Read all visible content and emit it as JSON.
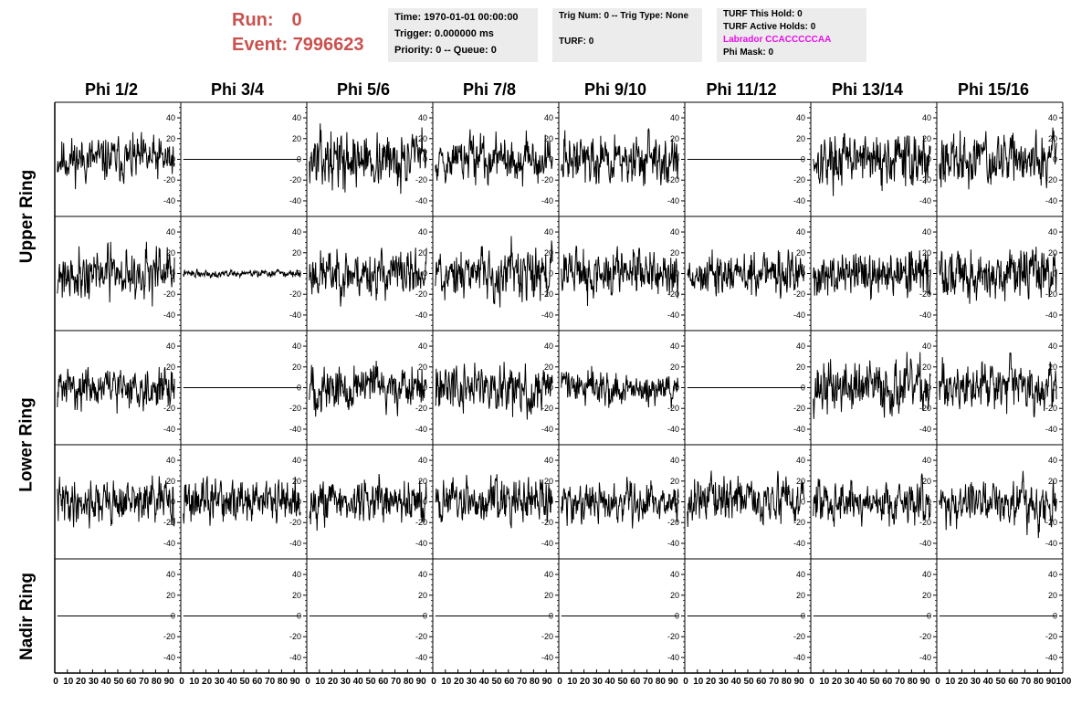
{
  "header": {
    "run_label": "Run:",
    "run_value": "0",
    "event_label": "Event:",
    "event_value": "7996623"
  },
  "info_boxes": {
    "time_box": {
      "time": "Time: 1970-01-01 00:00:00",
      "trigger": "Trigger: 0.000000 ms",
      "priority": "Priority: 0 -- Queue: 0"
    },
    "trig_box": {
      "trig": "Trig Num: 0 -- Trig Type: None",
      "turf": "TURF: 0"
    },
    "turf_box": {
      "this_hold": "TURF This Hold: 0",
      "active_holds": "TURF Active Holds: 0",
      "labrador": "Labrador CCACCCCCAA",
      "phi_mask": "Phi Mask: 0"
    }
  },
  "colors": {
    "run_text": "#c9524f",
    "labrador_text": "#e60fe6",
    "info_background": "#ececec",
    "trace": "#000000"
  },
  "columns": [
    "Phi 1/2",
    "Phi 3/4",
    "Phi 5/6",
    "Phi 7/8",
    "Phi 9/10",
    "Phi 11/12",
    "Phi 13/14",
    "Phi 15/16"
  ],
  "rows": [
    "Upper Ring",
    "Lower Ring",
    "Nadir Ring"
  ],
  "chart_data": {
    "type": "line",
    "description_rows": 5,
    "ylim": [
      -55,
      55
    ],
    "xlim": [
      0,
      100
    ],
    "yticks": [
      40,
      20,
      0,
      -20,
      -40
    ],
    "ytick_labels": [
      "40",
      "20",
      "0",
      "-20",
      "-40"
    ],
    "xtick_values": [
      0,
      10,
      20,
      30,
      40,
      50,
      60,
      70,
      80,
      90,
      100
    ],
    "xtick_labels": [
      "0",
      "10",
      "20",
      "30",
      "40",
      "50",
      "60",
      "70",
      "80",
      "90",
      "100"
    ],
    "samples_per_trace": 260,
    "panels": [
      [
        {
          "style": "noise",
          "amplitude": 15,
          "seed": 11
        },
        {
          "style": "flat",
          "amplitude": 0,
          "seed": 12
        },
        {
          "style": "noise",
          "amplitude": 18,
          "seed": 13
        },
        {
          "style": "noise",
          "amplitude": 15,
          "seed": 14
        },
        {
          "style": "noise",
          "amplitude": 16,
          "seed": 15
        },
        {
          "style": "flat",
          "amplitude": 0,
          "seed": 16
        },
        {
          "style": "noise",
          "amplitude": 17,
          "seed": 17
        },
        {
          "style": "noise",
          "amplitude": 17,
          "seed": 18
        }
      ],
      [
        {
          "style": "noise",
          "amplitude": 17,
          "seed": 21
        },
        {
          "style": "noise",
          "amplitude": 2.5,
          "seed": 22
        },
        {
          "style": "noise",
          "amplitude": 16,
          "seed": 23
        },
        {
          "style": "noise",
          "amplitude": 17,
          "seed": 24
        },
        {
          "style": "noise",
          "amplitude": 16,
          "seed": 25
        },
        {
          "style": "noise",
          "amplitude": 15,
          "seed": 26
        },
        {
          "style": "noise",
          "amplitude": 16,
          "seed": 27
        },
        {
          "style": "noise",
          "amplitude": 17,
          "seed": 28
        }
      ],
      [
        {
          "style": "noise",
          "amplitude": 13,
          "seed": 31
        },
        {
          "style": "flat",
          "amplitude": 0,
          "seed": 32
        },
        {
          "style": "noise",
          "amplitude": 16,
          "seed": 33
        },
        {
          "style": "noise",
          "amplitude": 17,
          "seed": 34
        },
        {
          "style": "noise",
          "amplitude": 12,
          "seed": 35
        },
        {
          "style": "flat",
          "amplitude": 0,
          "seed": 36
        },
        {
          "style": "noise",
          "amplitude": 18,
          "seed": 37
        },
        {
          "style": "noise",
          "amplitude": 16,
          "seed": 38
        }
      ],
      [
        {
          "style": "noise",
          "amplitude": 15,
          "seed": 41
        },
        {
          "style": "noise",
          "amplitude": 15,
          "seed": 42
        },
        {
          "style": "noise",
          "amplitude": 15,
          "seed": 43
        },
        {
          "style": "noise",
          "amplitude": 15,
          "seed": 44
        },
        {
          "style": "noise",
          "amplitude": 14,
          "seed": 45
        },
        {
          "style": "noise",
          "amplitude": 15,
          "seed": 46
        },
        {
          "style": "noise",
          "amplitude": 15,
          "seed": 47
        },
        {
          "style": "noise",
          "amplitude": 16,
          "seed": 48
        }
      ],
      [
        {
          "style": "flat",
          "amplitude": 0,
          "seed": 51
        },
        {
          "style": "flat",
          "amplitude": 0,
          "seed": 52
        },
        {
          "style": "flat",
          "amplitude": 0,
          "seed": 53
        },
        {
          "style": "flat",
          "amplitude": 0,
          "seed": 54
        },
        {
          "style": "flat",
          "amplitude": 0,
          "seed": 55
        },
        {
          "style": "flat",
          "amplitude": 0,
          "seed": 56
        },
        {
          "style": "flat",
          "amplitude": 0,
          "seed": 57
        },
        {
          "style": "flat",
          "amplitude": 0,
          "seed": 58
        }
      ]
    ]
  }
}
